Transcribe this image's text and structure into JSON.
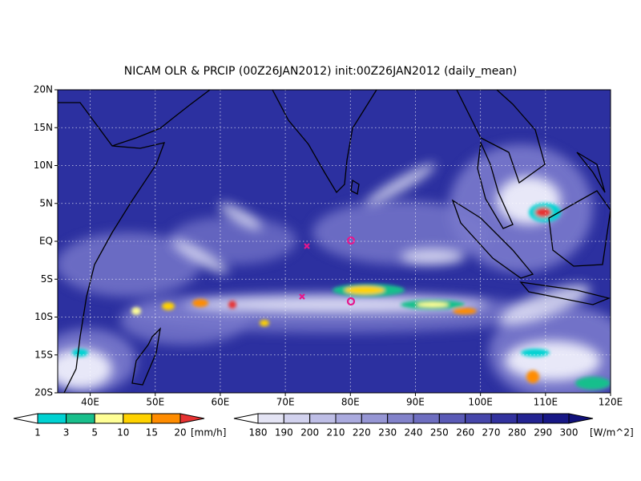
{
  "map": {
    "title": "NICAM OLR & PRCIP (00Z26JAN2012) init:00Z26JAN2012 (daily_mean)",
    "lonlim": [
      35,
      120
    ],
    "latlim": [
      -20,
      20
    ],
    "lonticks": [
      {
        "value": 40,
        "label": "40E"
      },
      {
        "value": 50,
        "label": "50E"
      },
      {
        "value": 60,
        "label": "60E"
      },
      {
        "value": 70,
        "label": "70E"
      },
      {
        "value": 80,
        "label": "80E"
      },
      {
        "value": 90,
        "label": "90E"
      },
      {
        "value": 100,
        "label": "100E"
      },
      {
        "value": 110,
        "label": "110E"
      },
      {
        "value": 120,
        "label": "120E"
      }
    ],
    "latticks": [
      {
        "value": 20,
        "label": "20N"
      },
      {
        "value": 15,
        "label": "15N"
      },
      {
        "value": 10,
        "label": "10N"
      },
      {
        "value": 5,
        "label": "5N"
      },
      {
        "value": 0,
        "label": "EQ"
      },
      {
        "value": -5,
        "label": "5S"
      },
      {
        "value": -10,
        "label": "10S"
      },
      {
        "value": -15,
        "label": "15S"
      },
      {
        "value": -20,
        "label": "20S"
      }
    ],
    "grid": true,
    "precip_legend": {
      "ticks": [
        1,
        3,
        5,
        10,
        15,
        20
      ],
      "unit": "[mm/h]",
      "colors": [
        "#ffffff",
        "#00d2d2",
        "#19bf8c",
        "#ffff96",
        "#ffd200",
        "#ff8c00",
        "#e63232"
      ]
    },
    "olr_legend": {
      "ticks": [
        180,
        190,
        200,
        210,
        220,
        230,
        240,
        250,
        260,
        270,
        280,
        290,
        300
      ],
      "unit": "[W/m^2]",
      "colors": [
        "#ffffff",
        "#e4e4f4",
        "#d2d2ee",
        "#bebee6",
        "#aaaade",
        "#9696d4",
        "#8282ca",
        "#6e6ec0",
        "#5a5ab6",
        "#4646aa",
        "#32329e",
        "#242492",
        "#181886",
        "#10107a"
      ]
    }
  }
}
